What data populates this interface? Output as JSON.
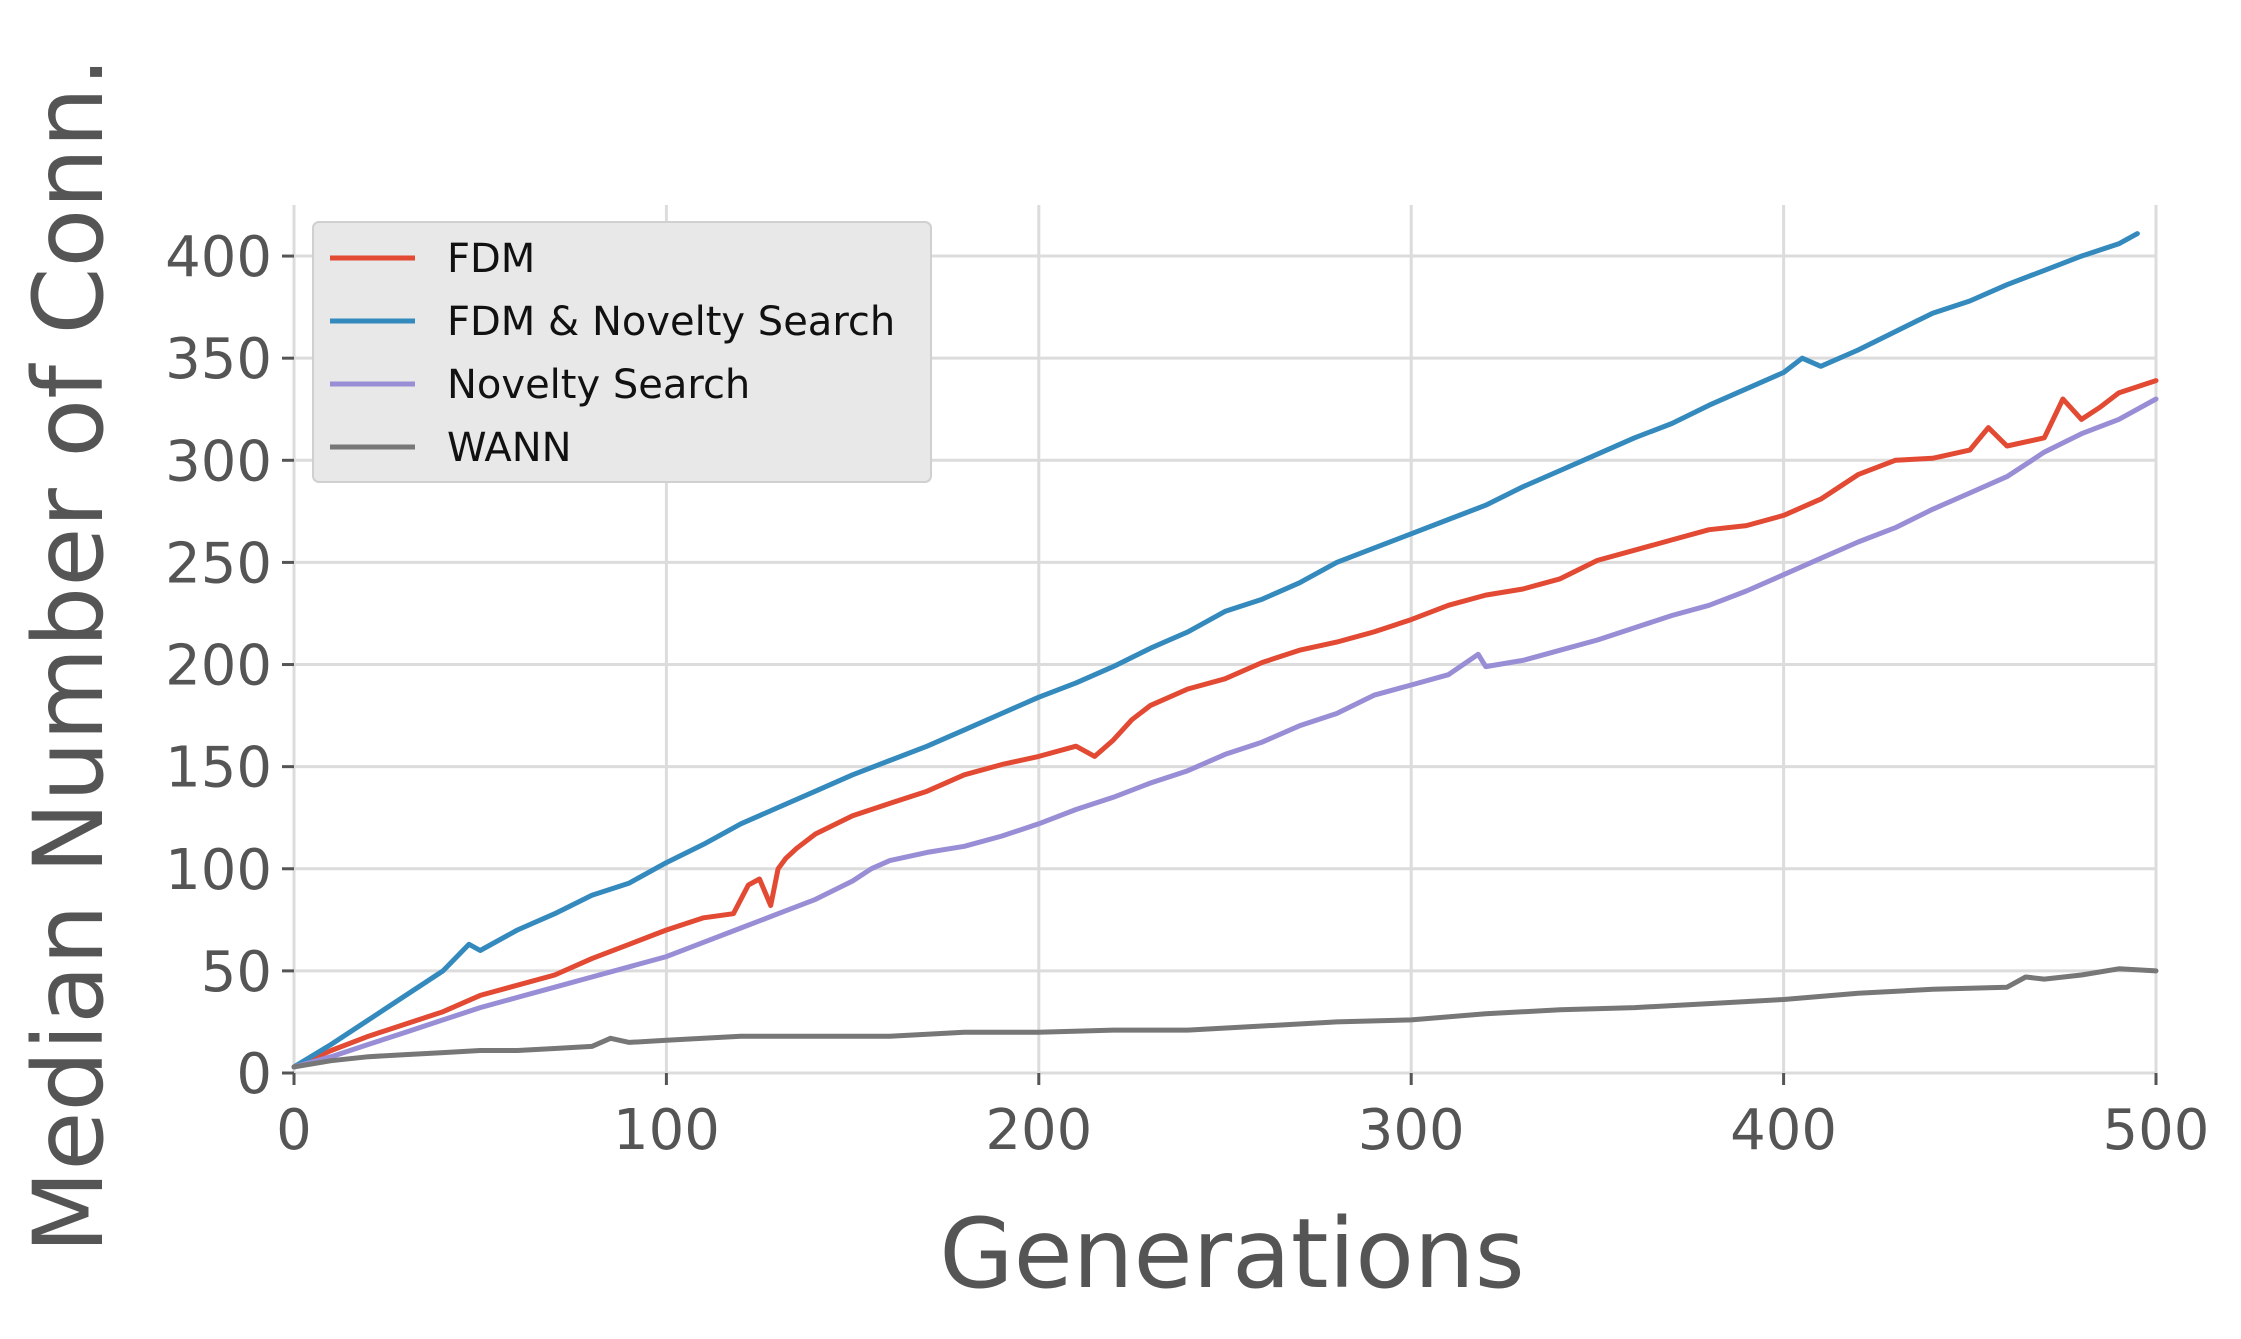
{
  "chart_data": {
    "type": "line",
    "title": "",
    "xlabel": "Generations",
    "ylabel": "Median Number of Conn.",
    "xlim": [
      0,
      500
    ],
    "ylim": [
      0,
      425
    ],
    "xticks": [
      "0",
      "100",
      "200",
      "300",
      "400",
      "500"
    ],
    "yticks": [
      "0",
      "50",
      "100",
      "150",
      "200",
      "250",
      "300",
      "350",
      "400"
    ],
    "grid": true,
    "legend_position": "top-left",
    "series": [
      {
        "name": "FDM",
        "color": "#E24A33",
        "x": [
          0,
          10,
          20,
          30,
          40,
          50,
          60,
          70,
          80,
          90,
          100,
          110,
          118,
          122,
          125,
          128,
          130,
          132,
          135,
          140,
          150,
          160,
          170,
          180,
          190,
          200,
          210,
          215,
          220,
          225,
          230,
          240,
          250,
          260,
          270,
          280,
          290,
          300,
          310,
          320,
          330,
          340,
          350,
          360,
          370,
          380,
          390,
          400,
          410,
          420,
          430,
          440,
          450,
          455,
          460,
          470,
          475,
          480,
          485,
          490,
          500
        ],
        "y": [
          3,
          11,
          18,
          24,
          30,
          38,
          43,
          48,
          56,
          63,
          70,
          76,
          78,
          92,
          95,
          82,
          100,
          105,
          110,
          117,
          126,
          132,
          138,
          146,
          151,
          155,
          160,
          155,
          163,
          173,
          180,
          188,
          193,
          201,
          207,
          211,
          216,
          222,
          229,
          234,
          237,
          242,
          251,
          256,
          261,
          266,
          268,
          273,
          281,
          293,
          300,
          301,
          305,
          316,
          307,
          311,
          330,
          320,
          326,
          333,
          339
        ]
      },
      {
        "name": "FDM & Novelty Search",
        "color": "#348ABD",
        "x": [
          0,
          10,
          20,
          30,
          40,
          47,
          50,
          60,
          70,
          80,
          90,
          100,
          110,
          120,
          130,
          140,
          150,
          160,
          170,
          180,
          190,
          200,
          210,
          220,
          230,
          240,
          250,
          260,
          270,
          280,
          290,
          300,
          310,
          320,
          330,
          340,
          350,
          360,
          370,
          380,
          390,
          400,
          405,
          410,
          420,
          430,
          440,
          450,
          460,
          470,
          480,
          490,
          495
        ],
        "y": [
          3,
          14,
          26,
          38,
          50,
          63,
          60,
          70,
          78,
          87,
          93,
          103,
          112,
          122,
          130,
          138,
          146,
          153,
          160,
          168,
          176,
          184,
          191,
          199,
          208,
          216,
          226,
          232,
          240,
          250,
          257,
          264,
          271,
          278,
          287,
          295,
          303,
          311,
          318,
          327,
          335,
          343,
          350,
          346,
          354,
          363,
          372,
          378,
          386,
          393,
          400,
          406,
          411
        ]
      },
      {
        "name": "Novelty Search",
        "color": "#988ED5",
        "x": [
          0,
          10,
          20,
          30,
          40,
          50,
          60,
          70,
          80,
          90,
          100,
          110,
          120,
          130,
          140,
          150,
          155,
          160,
          170,
          180,
          190,
          200,
          210,
          220,
          230,
          240,
          250,
          260,
          270,
          280,
          290,
          300,
          310,
          318,
          320,
          330,
          340,
          350,
          360,
          370,
          380,
          390,
          400,
          410,
          420,
          430,
          440,
          450,
          460,
          465,
          470,
          480,
          490,
          500
        ],
        "y": [
          3,
          8,
          14,
          20,
          26,
          32,
          37,
          42,
          47,
          52,
          57,
          64,
          71,
          78,
          85,
          94,
          100,
          104,
          108,
          111,
          116,
          122,
          129,
          135,
          142,
          148,
          156,
          162,
          170,
          176,
          185,
          190,
          195,
          205,
          199,
          202,
          207,
          212,
          218,
          224,
          229,
          236,
          244,
          252,
          260,
          267,
          276,
          284,
          292,
          298,
          304,
          313,
          320,
          330
        ]
      },
      {
        "name": "WANN",
        "color": "#777777",
        "x": [
          0,
          10,
          20,
          30,
          40,
          50,
          60,
          70,
          80,
          85,
          90,
          100,
          120,
          140,
          160,
          180,
          200,
          220,
          240,
          260,
          280,
          300,
          320,
          340,
          360,
          380,
          400,
          420,
          440,
          460,
          465,
          470,
          480,
          490,
          500
        ],
        "y": [
          3,
          6,
          8,
          9,
          10,
          11,
          11,
          12,
          13,
          17,
          15,
          16,
          18,
          18,
          18,
          20,
          20,
          21,
          21,
          23,
          25,
          26,
          29,
          31,
          32,
          34,
          36,
          39,
          41,
          42,
          47,
          46,
          48,
          51,
          50
        ]
      }
    ]
  }
}
